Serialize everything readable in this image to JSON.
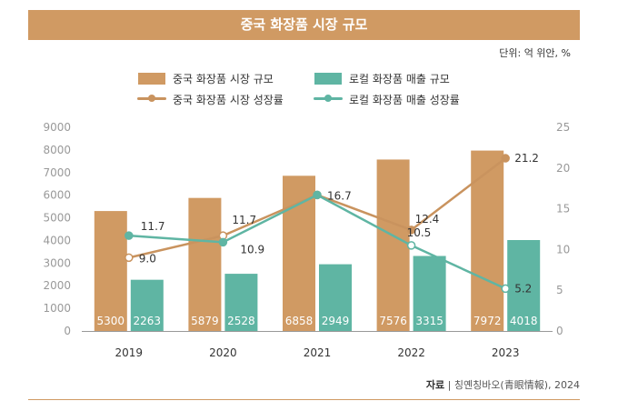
{
  "title": "중국 화장품 시장 규모",
  "unit_label": "단위: 억 위안, %",
  "legend": {
    "bar1": "중국 화장품 시장 규모",
    "bar2": "로컬 화장품 매출 규모",
    "line1": "중국 화장품 시장 성장률",
    "line2": "로컬 화장품 매출 성장률"
  },
  "source": {
    "label": "자료",
    "text": "칭옌칭바오(青眼情報), 2024"
  },
  "colors": {
    "bar1": "#d09a63",
    "bar2": "#5fb5a3",
    "line1": "#c9935e",
    "line2": "#5fb5a3"
  },
  "chart_data": {
    "type": "bar",
    "title": "중국 화장품 시장 규모",
    "categories": [
      "2019",
      "2020",
      "2021",
      "2022",
      "2023"
    ],
    "series": [
      {
        "name": "중국 화장품 시장 규모",
        "type": "bar",
        "axis": "left",
        "values": [
          5300,
          5879,
          6858,
          7576,
          7972
        ],
        "labels": [
          "5300",
          "5879",
          "6858",
          "7576",
          "7972"
        ]
      },
      {
        "name": "로컬 화장품 매출 규모",
        "type": "bar",
        "axis": "left",
        "values": [
          2263,
          2528,
          2949,
          3315,
          4018
        ],
        "labels": [
          "2263",
          "2528",
          "2949",
          "3315",
          "4018"
        ]
      },
      {
        "name": "중국 화장품 시장 성장률",
        "type": "line",
        "axis": "right",
        "values": [
          9.0,
          11.7,
          16.7,
          12.4,
          21.2
        ],
        "labels": [
          "9.0",
          "11.7",
          "16.7",
          "12.4",
          "21.2"
        ]
      },
      {
        "name": "로컬 화장품 매출 성장률",
        "type": "line",
        "axis": "right",
        "values": [
          11.7,
          10.9,
          16.7,
          10.5,
          5.2
        ],
        "labels": [
          "11.7",
          "10.9",
          "",
          "10.5",
          "5.2"
        ]
      }
    ],
    "y_left": {
      "min": 0,
      "max": 9000,
      "ticks": [
        "0",
        "1000",
        "2000",
        "3000",
        "4000",
        "5000",
        "6000",
        "7000",
        "8000",
        "9000"
      ]
    },
    "y_right": {
      "min": 0,
      "max": 25,
      "ticks": [
        "0",
        "5",
        "10",
        "15",
        "20",
        "25"
      ]
    },
    "grid": false
  }
}
